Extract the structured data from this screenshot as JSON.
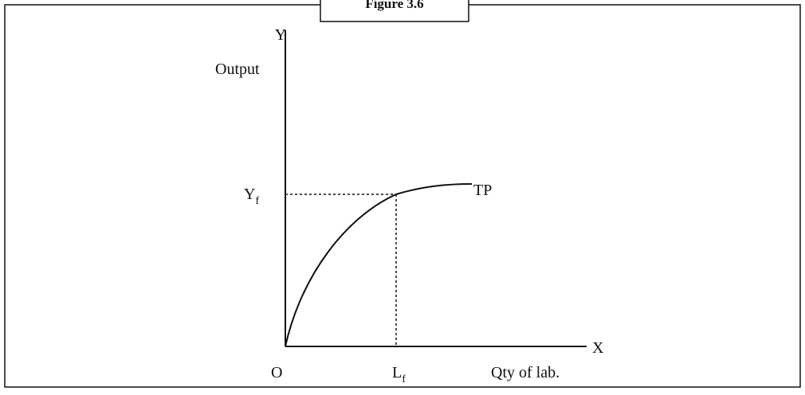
{
  "figure": {
    "title": "Figure 3.6"
  },
  "axes": {
    "y_name": "Y",
    "y_label": "Output",
    "x_name": "X",
    "x_label": "Qty of lab.",
    "origin": "O"
  },
  "curve": {
    "label": "TP"
  },
  "points": {
    "y_level": {
      "main": "Y",
      "sub": "f"
    },
    "x_level": {
      "main": "L",
      "sub": "f"
    }
  }
}
